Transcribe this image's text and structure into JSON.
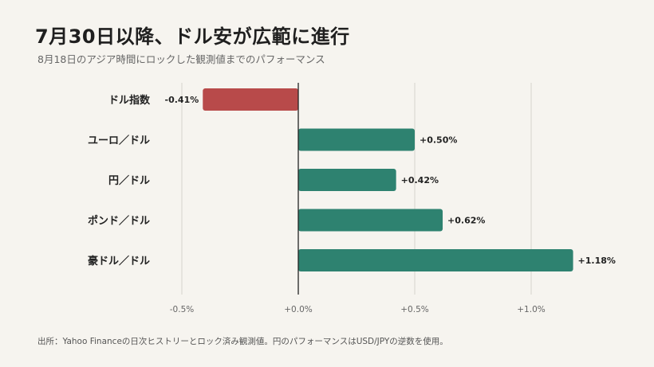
{
  "title": "7月30日以降、ドル安が広範に進行",
  "subtitle": "8月18日のアジア時間にロックした観測値までのパフォーマンス",
  "source": "出所：Yahoo Financeの日次ヒストリーとロック済み観測値。円のパフォーマンスはUSD/JPYの逆数を使用。",
  "colors": {
    "negative": "#b84a4a",
    "positive": "#2e8270",
    "axis": "#222222",
    "grid": "#d6d3cc"
  },
  "chart_data": {
    "type": "bar",
    "orientation": "horizontal",
    "categories": [
      "ドル指数",
      "ユーロ／ドル",
      "円／ドル",
      "ポンド／ドル",
      "豪ドル／ドル"
    ],
    "values": [
      -0.41,
      0.5,
      0.42,
      0.62,
      1.18
    ],
    "value_labels": [
      "-0.41%",
      "+0.50%",
      "+0.42%",
      "+0.62%",
      "+1.18%"
    ],
    "xlim": [
      -0.5,
      1.0
    ],
    "xticks": [
      -0.5,
      0.0,
      0.5,
      1.0
    ],
    "xtick_labels": [
      "-0.5%",
      "+0.0%",
      "+0.5%",
      "+1.0%"
    ],
    "grid": true,
    "xlabel": "",
    "ylabel": ""
  }
}
